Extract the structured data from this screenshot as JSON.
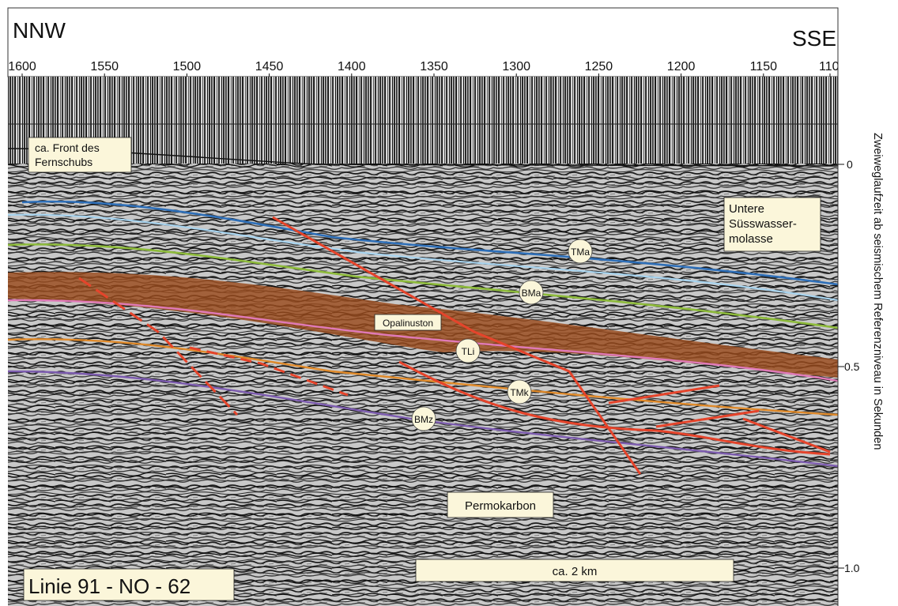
{
  "header": {
    "left_direction": "NNW",
    "right_direction": "SSE",
    "top_ticks": [
      "1600",
      "1550",
      "1500",
      "1450",
      "1400",
      "1350",
      "1300",
      "1250",
      "1200",
      "1150",
      "110"
    ]
  },
  "right_axis": {
    "title": "Zweiweglaufzeit ab seismischem Referenzniveau in Sekunden",
    "ticks": [
      "0",
      "0.5",
      "1.0"
    ]
  },
  "annotations": {
    "front_line1": "ca. Front des",
    "front_line2": "Fernschubs",
    "usm_line1": "Untere",
    "usm_line2": "Süsswasser-",
    "usm_line3": "molasse",
    "opalinuston": "Opalinuston",
    "permokarbon": "Permokarbon",
    "scale": "ca. 2 km",
    "line_name": "Linie 91 - NO - 62"
  },
  "horizons": [
    {
      "label": "TMa",
      "color": "#2e6fb8"
    },
    {
      "label": "",
      "color": "#a8d4ef"
    },
    {
      "label": "BMa",
      "color": "#8dbb3a"
    },
    {
      "label": "TLi",
      "color": "#e07ab8"
    },
    {
      "label": "TMk",
      "color": "#e08a2a"
    },
    {
      "label": "BMz",
      "color": "#7d5cb0"
    }
  ],
  "colors": {
    "opalinuston_band": "#9a4a1c",
    "fault": "#e5442b"
  }
}
